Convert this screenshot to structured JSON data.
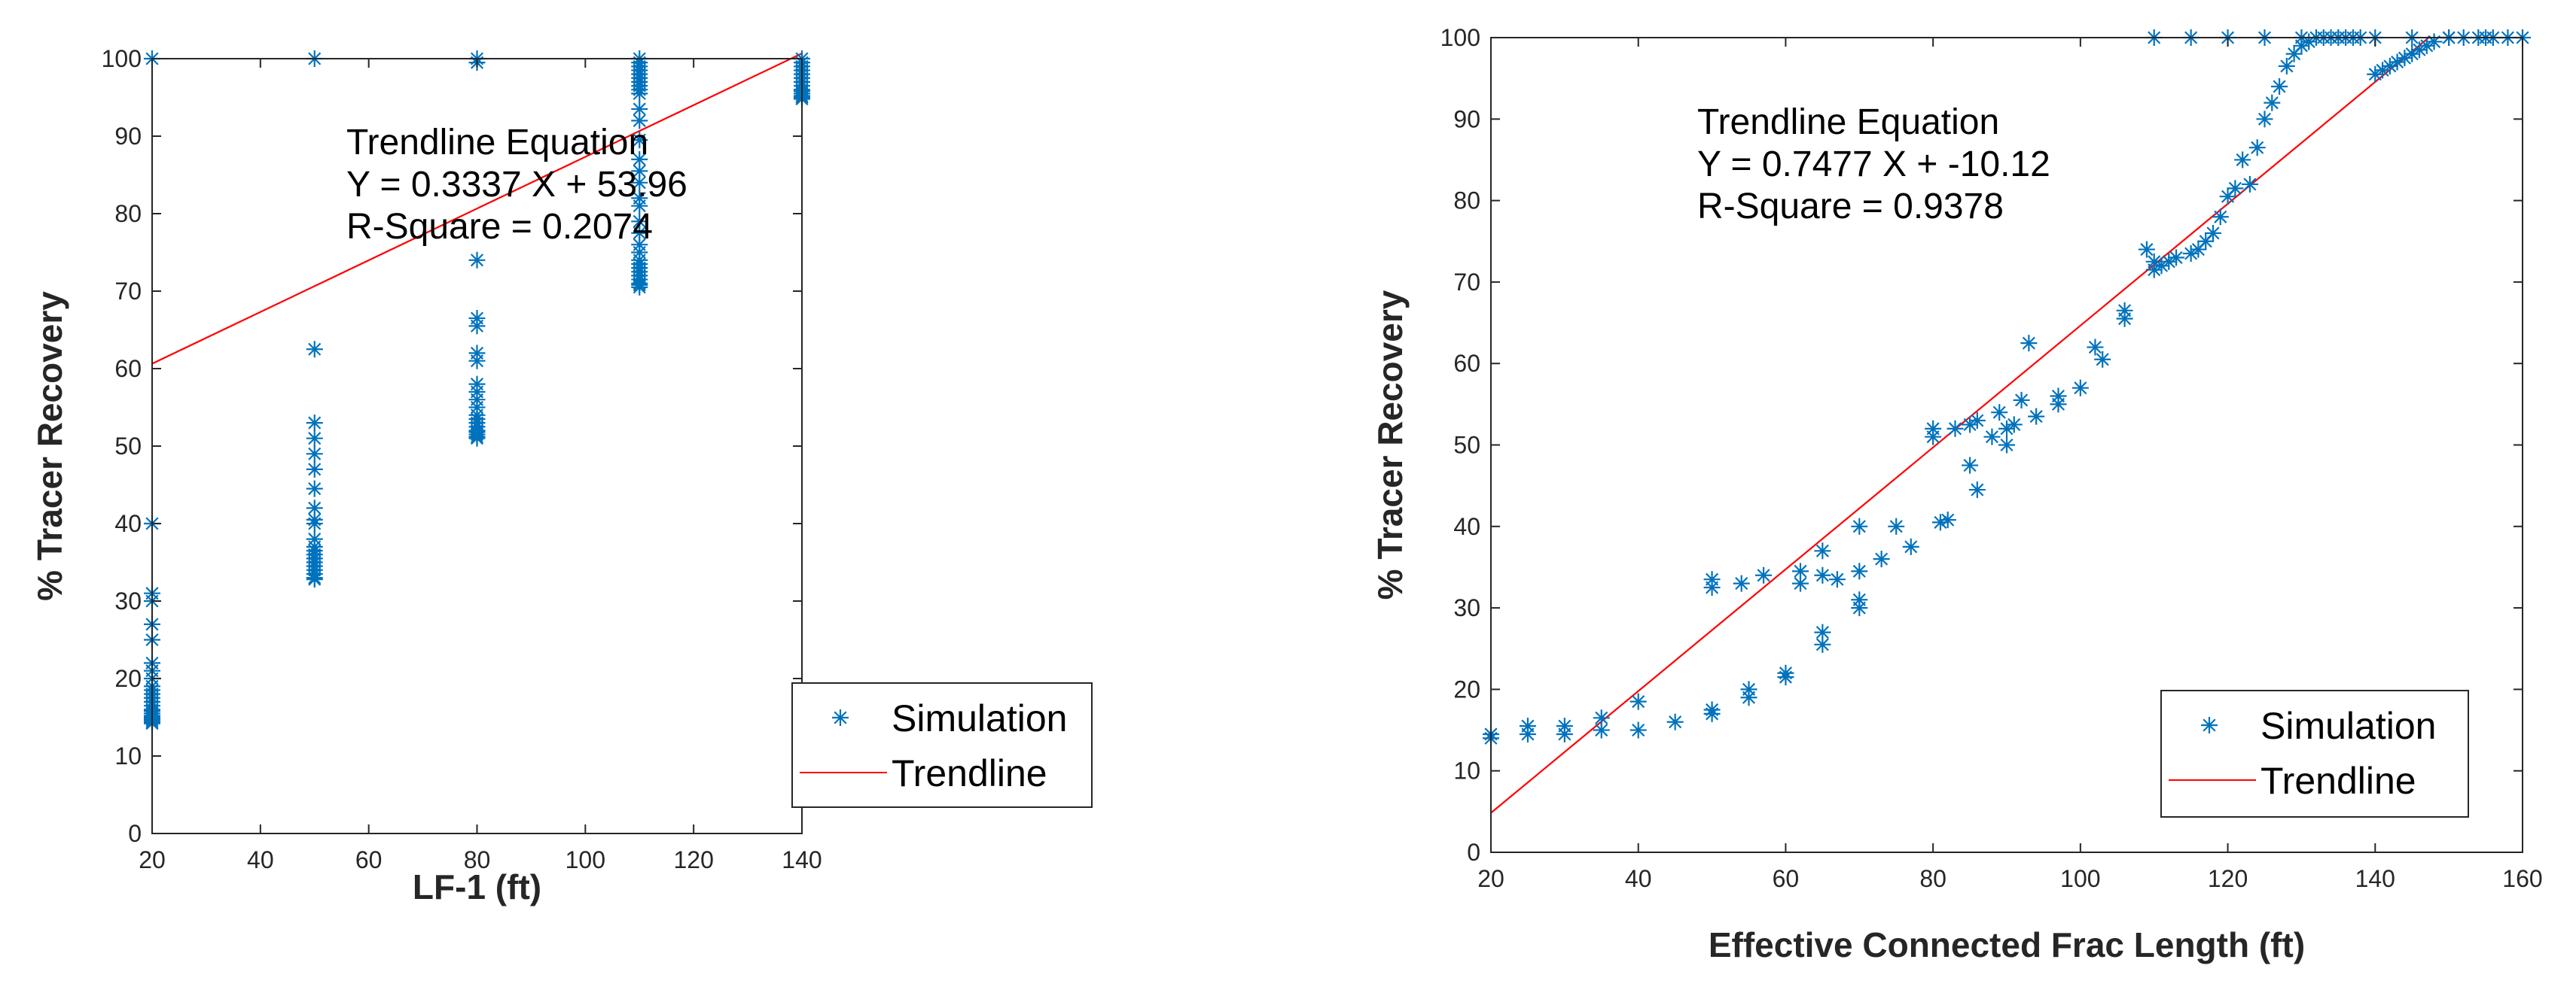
{
  "chart_data": [
    {
      "type": "scatter",
      "xlabel": "LF-1 (ft)",
      "ylabel": "% Tracer Recovery",
      "xlim": [
        20,
        140
      ],
      "ylim": [
        0,
        100
      ],
      "xticks": [
        20,
        40,
        60,
        80,
        100,
        120,
        140
      ],
      "yticks": [
        0,
        10,
        20,
        30,
        40,
        50,
        60,
        70,
        80,
        90,
        100
      ],
      "grid": false,
      "legend_position": "bottom-right",
      "annotation": [
        "Trendline Equation",
        "Y = 0.3337 X + 53.96",
        "R-Square = 0.2074"
      ],
      "series": [
        {
          "name": "Simulation",
          "marker": "asterisk",
          "x": [
            20,
            20,
            20,
            20,
            20,
            20,
            20,
            20,
            20,
            20,
            20,
            20,
            20,
            20,
            20,
            20,
            20,
            20,
            20,
            20,
            20,
            20,
            20,
            20,
            50,
            50,
            50,
            50,
            50,
            50,
            50,
            50,
            50,
            50,
            50,
            50,
            50,
            50,
            50,
            50,
            50,
            50,
            50,
            50,
            50,
            80,
            80,
            80,
            80,
            80,
            80,
            80,
            80,
            80,
            80,
            80,
            80,
            80,
            80,
            80,
            80,
            80,
            80,
            80,
            80,
            110,
            110,
            110,
            110,
            110,
            110,
            110,
            110,
            110,
            110,
            110,
            110,
            110,
            110,
            110,
            110,
            110,
            110,
            110,
            110,
            110,
            110,
            110,
            110,
            110,
            110,
            110,
            110,
            110,
            110,
            110,
            140,
            140,
            140,
            140,
            140,
            140,
            140,
            140,
            140,
            140,
            140,
            140,
            140,
            140
          ],
          "y": [
            100,
            40,
            31,
            30,
            27,
            25,
            22,
            21,
            20,
            19,
            18.5,
            18,
            17.5,
            17,
            16.5,
            16,
            15.8,
            15.5,
            15.2,
            15,
            14.8,
            14.6,
            14.4,
            14.2,
            100,
            62.5,
            53,
            51,
            49,
            47,
            44.5,
            42,
            40.5,
            40,
            38,
            37,
            36.5,
            36,
            35.5,
            35,
            34.5,
            34,
            33.5,
            33,
            32.8,
            100,
            99.5,
            74,
            66.5,
            65.5,
            62,
            61,
            58,
            57,
            56,
            55,
            54,
            53.5,
            53,
            52.5,
            52,
            51.8,
            51.5,
            51.2,
            51,
            100,
            99.5,
            99,
            98.5,
            98,
            97.5,
            97,
            96.5,
            96,
            95.5,
            93.5,
            92,
            89.5,
            87,
            85.5,
            84,
            82,
            81,
            79,
            77.5,
            76,
            75,
            74,
            73.5,
            73,
            72.5,
            72,
            71.5,
            71,
            70.8,
            70.5,
            100,
            99.5,
            99,
            98.5,
            98,
            97.5,
            97,
            96.5,
            96,
            95.8,
            95.5,
            95.2,
            95,
            94.8
          ]
        },
        {
          "name": "Trendline",
          "type": "line",
          "color": "#ff0000",
          "x": [
            20,
            140
          ],
          "y": [
            60.634,
            100.678
          ]
        }
      ]
    },
    {
      "type": "scatter",
      "xlabel": "Effective Connected Frac Length (ft)",
      "ylabel": "% Tracer Recovery",
      "xlim": [
        20,
        160
      ],
      "ylim": [
        0,
        100
      ],
      "xticks": [
        20,
        40,
        60,
        80,
        100,
        120,
        140,
        160
      ],
      "yticks": [
        0,
        10,
        20,
        30,
        40,
        50,
        60,
        70,
        80,
        90,
        100
      ],
      "grid": false,
      "legend_position": "bottom-right",
      "annotation": [
        "Trendline Equation",
        "Y = 0.7477 X + -10.12",
        "R-Square = 0.9378"
      ],
      "series": [
        {
          "name": "Simulation",
          "marker": "asterisk",
          "x": [
            20,
            20,
            25,
            25,
            30,
            30,
            35,
            35,
            40,
            40,
            45,
            50,
            50,
            50,
            50,
            54,
            55,
            55,
            57,
            60,
            60,
            62,
            62,
            65,
            65,
            65,
            65,
            67,
            70,
            70,
            70,
            70,
            73,
            75,
            77,
            80,
            80,
            81,
            82,
            83,
            85,
            85,
            86,
            86,
            88,
            89,
            90,
            90,
            91,
            92,
            93,
            94,
            97,
            97,
            100,
            102,
            103,
            106,
            106,
            109,
            110,
            110,
            111,
            112,
            113,
            115,
            116,
            117,
            118,
            119,
            120,
            121,
            122,
            123,
            124,
            125,
            126,
            127,
            128,
            129,
            130,
            131,
            132,
            133,
            134,
            135,
            136,
            137,
            138,
            140,
            141,
            142,
            143,
            144,
            145,
            146,
            147,
            148,
            150,
            152,
            154,
            156,
            158,
            160,
            110,
            115,
            120,
            125,
            130,
            135,
            140,
            145,
            150,
            155
          ],
          "y": [
            14.5,
            14,
            15.5,
            14.5,
            15.5,
            14.5,
            16.5,
            15,
            18.5,
            15,
            16,
            17.5,
            17,
            33.5,
            32.5,
            33,
            20,
            19,
            34,
            22,
            21.5,
            34.5,
            33,
            37,
            34,
            27,
            25.5,
            33.5,
            40,
            34.5,
            31,
            30,
            36,
            40,
            37.5,
            52,
            51,
            40.5,
            40.8,
            52,
            52.5,
            47.5,
            44.5,
            53,
            51,
            54,
            52,
            50,
            52.5,
            55.5,
            62.5,
            53.5,
            55,
            56,
            57,
            62,
            60.5,
            66.5,
            65.5,
            74,
            72.5,
            71.5,
            72,
            72.5,
            73,
            73.5,
            74,
            75,
            76,
            78,
            80.5,
            81.5,
            85,
            82,
            86.5,
            90,
            92,
            94,
            96.5,
            98,
            99,
            99.5,
            100,
            100,
            100,
            100,
            100,
            100,
            100,
            95.5,
            96,
            96.5,
            97,
            97.5,
            98,
            98.5,
            99,
            99.5,
            100,
            100,
            100,
            100,
            100,
            100,
            100,
            100,
            100,
            100,
            100,
            100,
            100,
            100,
            100,
            100
          ]
        },
        {
          "name": "Trendline",
          "type": "line",
          "color": "#ff0000",
          "x": [
            20,
            147.5
          ],
          "y": [
            4.834,
            100.166
          ]
        }
      ]
    }
  ]
}
